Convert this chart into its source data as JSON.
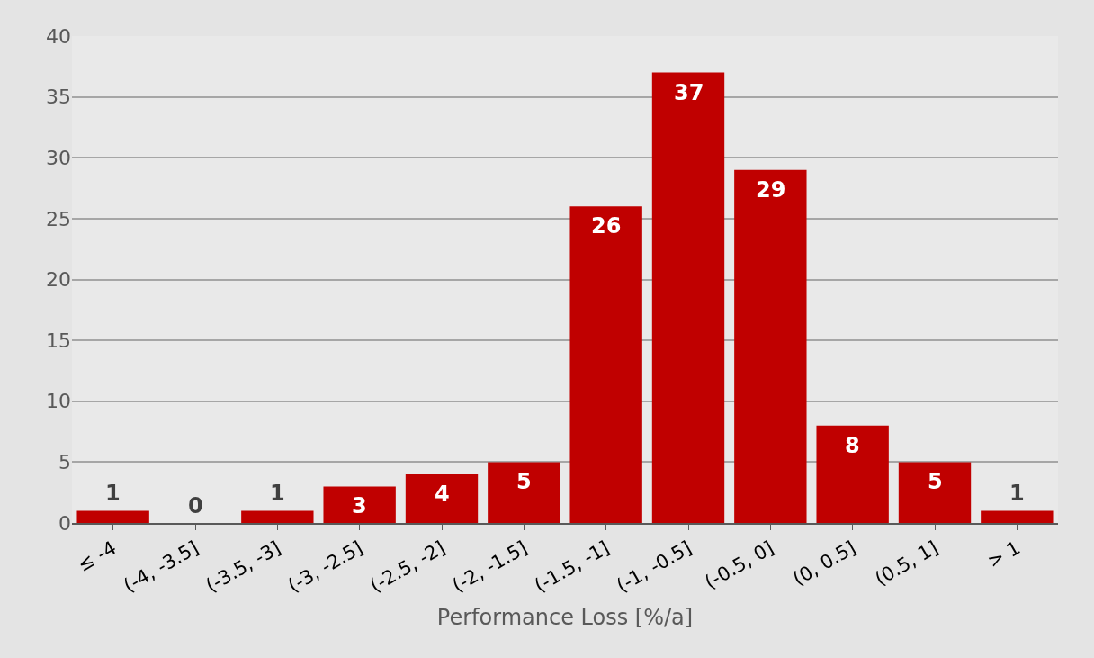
{
  "chart_data": {
    "type": "bar",
    "xlabel": "Performance Loss [%/a]",
    "categories": [
      "≤ -4",
      "(-4, -3.5]",
      "(-3.5, -3]",
      "(-3, -2.5]",
      "(-2.5, -2]",
      "(-2, -1.5]",
      "(-1.5, -1]",
      "(-1, -0.5]",
      "(-0.5, 0]",
      "(0, 0.5]",
      "(0.5, 1]",
      "> 1"
    ],
    "values": [
      1,
      0,
      1,
      3,
      4,
      5,
      26,
      37,
      29,
      8,
      5,
      1
    ],
    "color": "#c00000",
    "ylim": [
      0,
      40
    ],
    "yticks": [
      0,
      5,
      10,
      15,
      20,
      25,
      30,
      35,
      40
    ],
    "grid": "y",
    "data_labels": true
  }
}
